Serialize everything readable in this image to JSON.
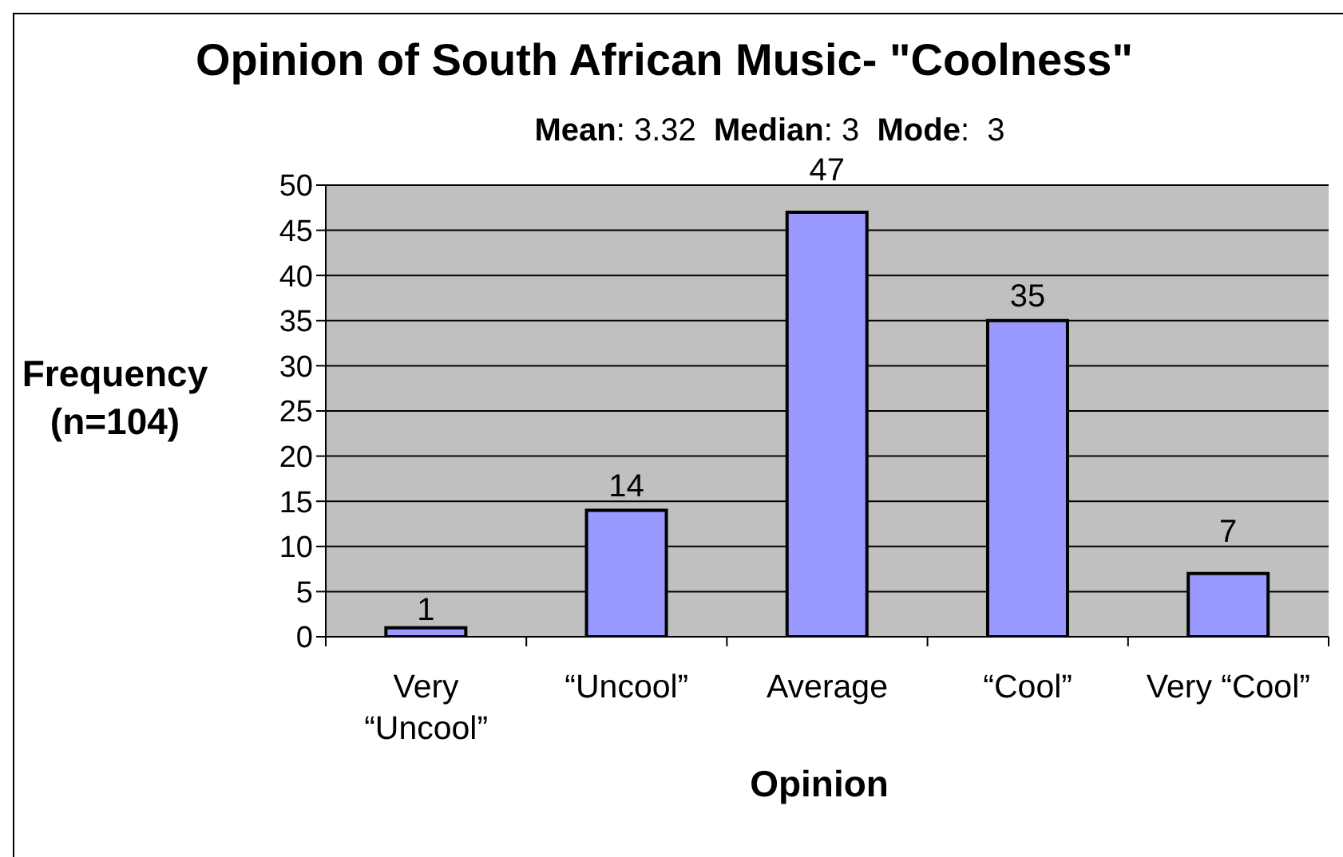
{
  "chart_data": {
    "type": "bar",
    "title": "Opinion of South African Music- \"Coolness\"",
    "subtitle": "Mean: 3.32  Median: 3  Mode:  3",
    "xlabel": "Opinion",
    "ylabel": "Frequency (n=104)",
    "categories": [
      "Very “Uncool”",
      "“Uncool”",
      "Average",
      "“Cool”",
      "Very “Cool”"
    ],
    "values": [
      1,
      14,
      47,
      35,
      7
    ],
    "color": "#9999ff",
    "ylim": [
      0,
      50
    ],
    "yticks": [
      0,
      5,
      10,
      15,
      20,
      25,
      30,
      35,
      40,
      45,
      50
    ],
    "grid": "y",
    "data_labels": true
  }
}
